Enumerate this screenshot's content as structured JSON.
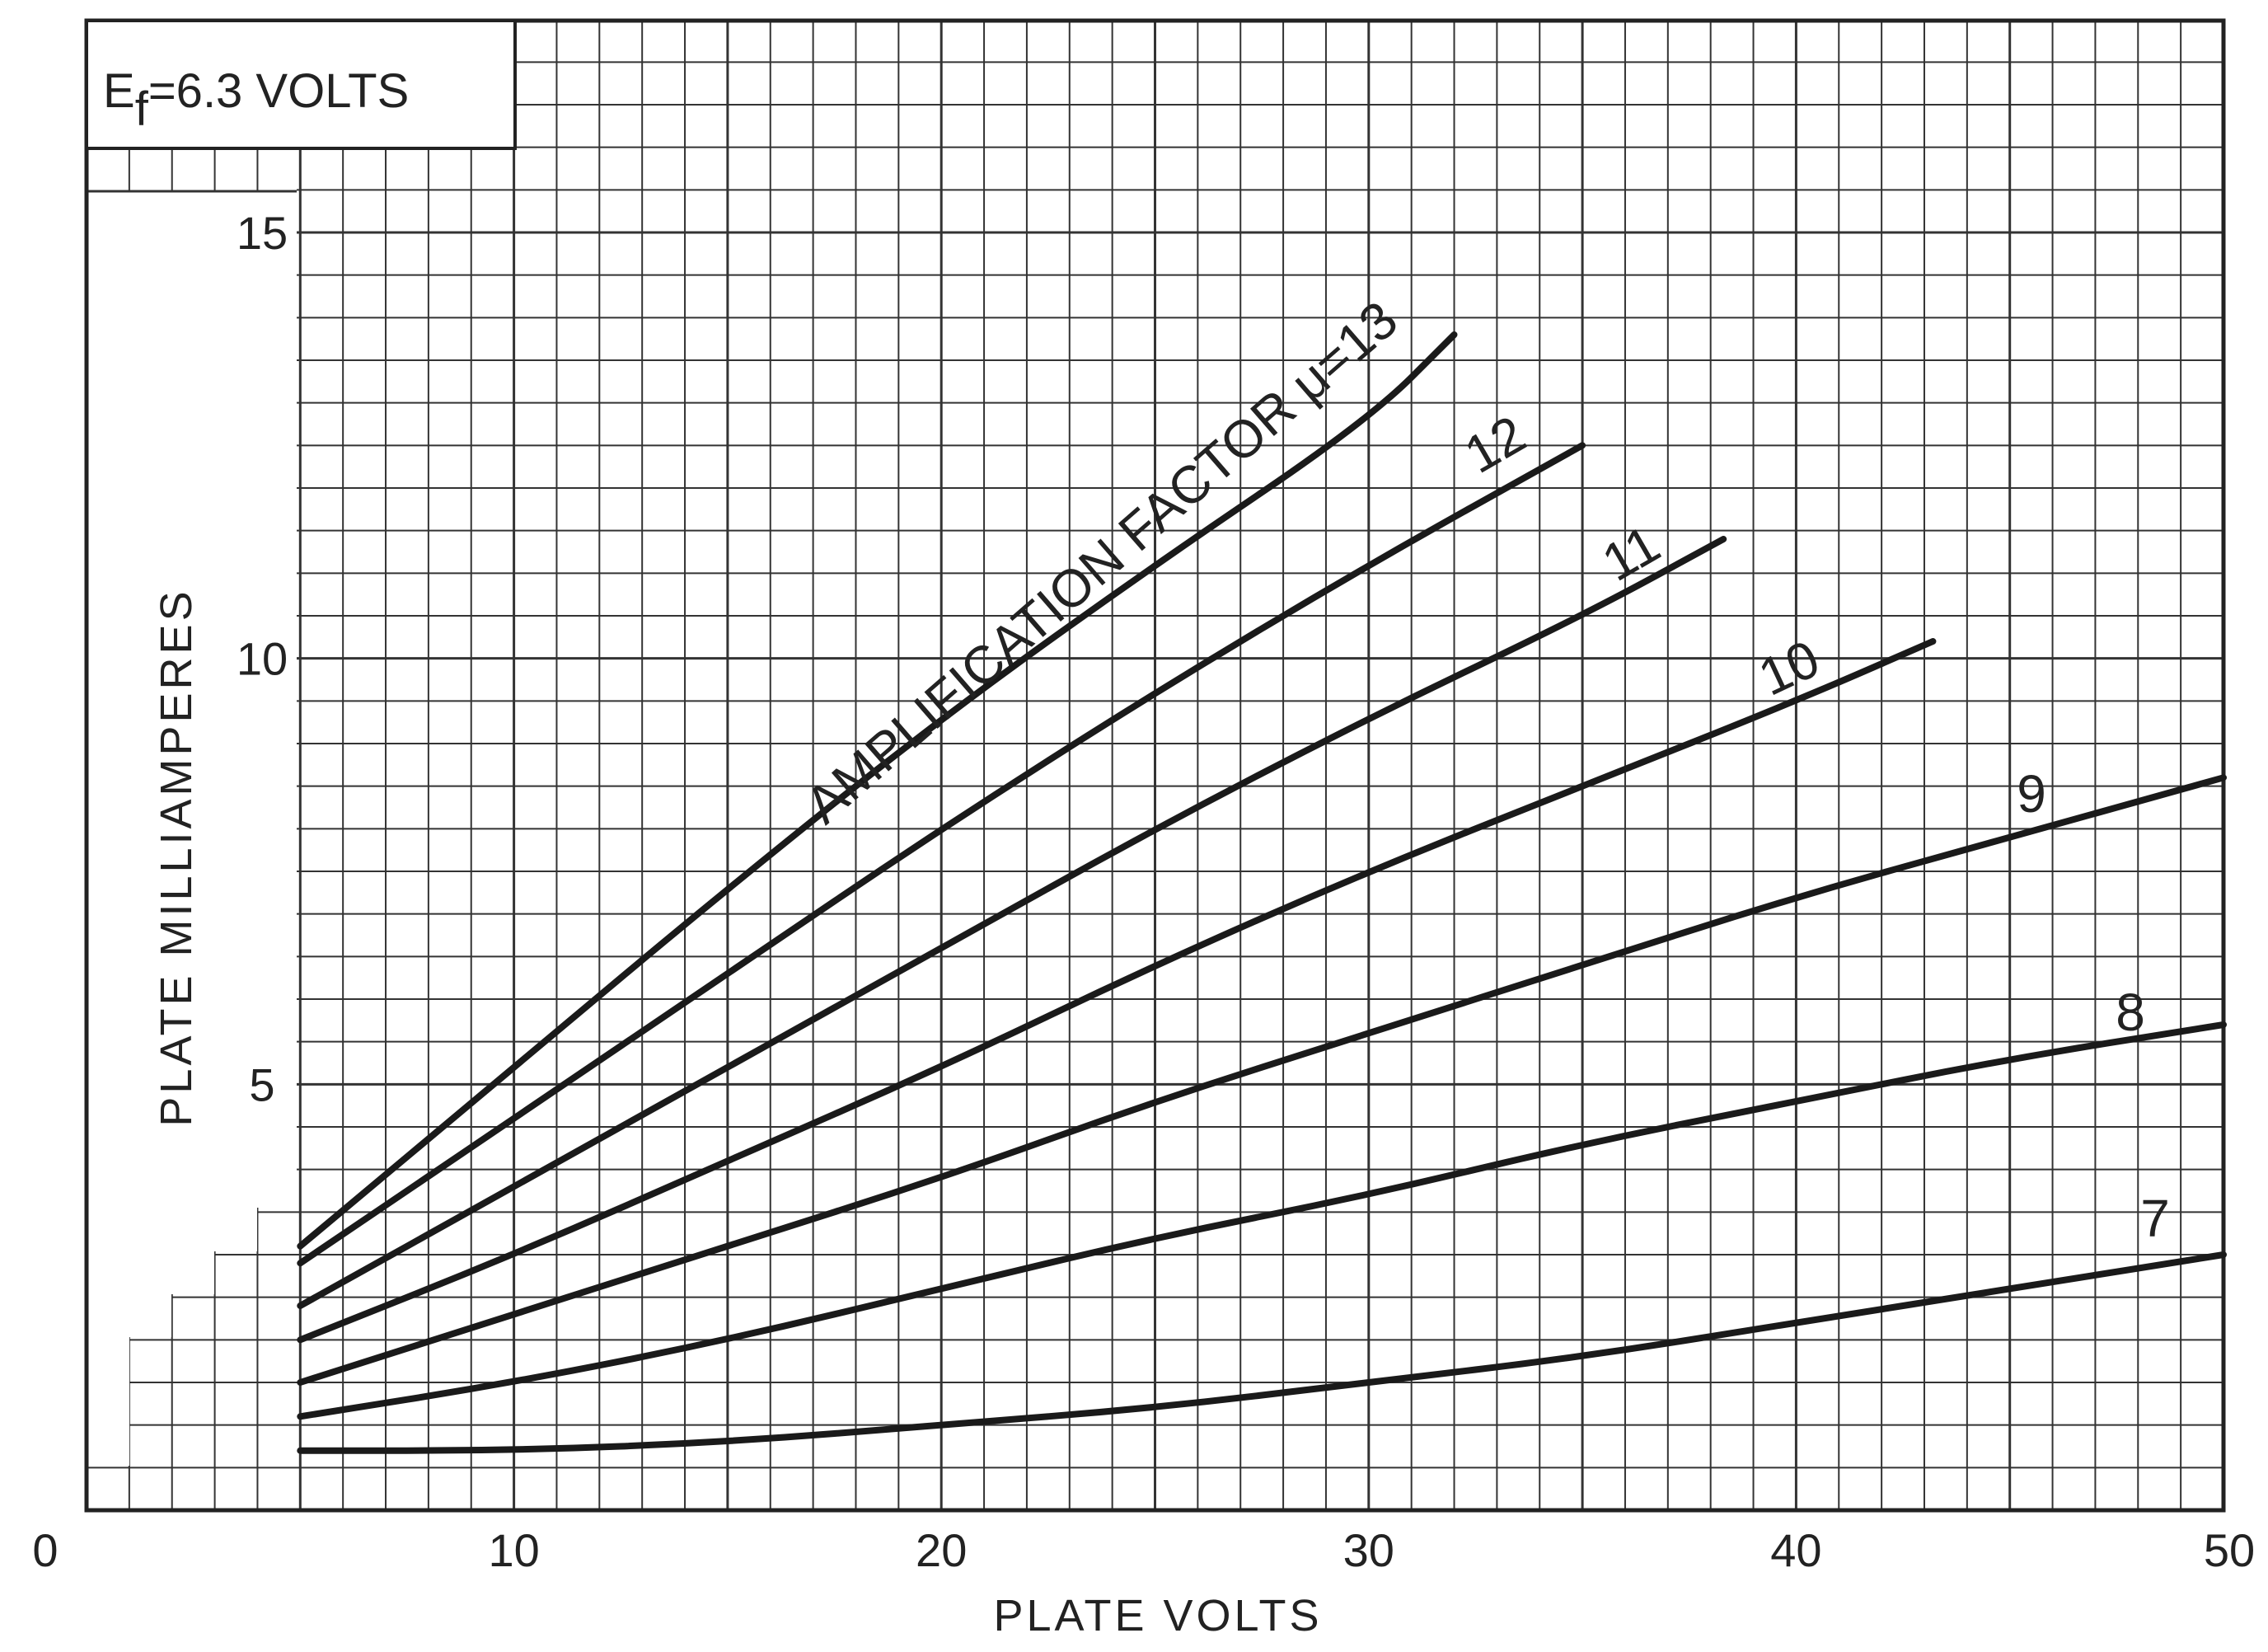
{
  "chart_data": {
    "type": "line",
    "title": "",
    "xlabel": "PLATE VOLTS",
    "ylabel": "PLATE MILLIAMPERES",
    "xlim": [
      0,
      50
    ],
    "ylim": [
      0,
      15
    ],
    "x_ticks": [
      "0",
      "10",
      "20",
      "30",
      "40",
      "50"
    ],
    "y_ticks": [
      "5",
      "10",
      "15"
    ],
    "grid": true,
    "annotation": {
      "prefix": "E",
      "subscript": "f",
      "suffix": "=6.3 VOLTS"
    },
    "curve_title": "AMPLIFICATION FACTOR μ=13",
    "series": [
      {
        "name": "13",
        "points": [
          [
            5,
            3.1
          ],
          [
            10,
            5.2
          ],
          [
            15,
            7.3
          ],
          [
            20,
            9.3
          ],
          [
            25,
            11.1
          ],
          [
            30,
            12.8
          ],
          [
            32,
            13.8
          ]
        ]
      },
      {
        "name": "12",
        "points": [
          [
            5,
            2.9
          ],
          [
            10,
            4.6
          ],
          [
            15,
            6.3
          ],
          [
            20,
            8.0
          ],
          [
            25,
            9.6
          ],
          [
            30,
            11.1
          ],
          [
            35,
            12.5
          ]
        ]
      },
      {
        "name": "11",
        "points": [
          [
            5,
            2.4
          ],
          [
            10,
            3.8
          ],
          [
            15,
            5.2
          ],
          [
            20,
            6.6
          ],
          [
            25,
            8.0
          ],
          [
            30,
            9.3
          ],
          [
            35,
            10.5
          ],
          [
            38.3,
            11.4
          ]
        ]
      },
      {
        "name": "10",
        "points": [
          [
            5,
            2.0
          ],
          [
            10,
            3.0
          ],
          [
            15,
            4.1
          ],
          [
            20,
            5.2
          ],
          [
            25,
            6.4
          ],
          [
            30,
            7.5
          ],
          [
            35,
            8.5
          ],
          [
            40,
            9.5
          ],
          [
            43.2,
            10.2
          ]
        ]
      },
      {
        "name": "9",
        "points": [
          [
            5,
            1.5
          ],
          [
            10,
            2.3
          ],
          [
            15,
            3.1
          ],
          [
            20,
            3.9
          ],
          [
            25,
            4.8
          ],
          [
            30,
            5.6
          ],
          [
            35,
            6.4
          ],
          [
            40,
            7.2
          ],
          [
            45,
            7.9
          ],
          [
            50,
            8.6
          ]
        ]
      },
      {
        "name": "8",
        "points": [
          [
            5,
            1.1
          ],
          [
            10,
            1.5
          ],
          [
            15,
            2.0
          ],
          [
            20,
            2.6
          ],
          [
            25,
            3.2
          ],
          [
            30,
            3.7
          ],
          [
            35,
            4.3
          ],
          [
            40,
            4.8
          ],
          [
            45,
            5.3
          ],
          [
            50,
            5.7
          ]
        ]
      },
      {
        "name": "7",
        "points": [
          [
            5,
            0.7
          ],
          [
            10,
            0.7
          ],
          [
            15,
            0.8
          ],
          [
            20,
            1.0
          ],
          [
            25,
            1.2
          ],
          [
            30,
            1.5
          ],
          [
            35,
            1.8
          ],
          [
            40,
            2.2
          ],
          [
            45,
            2.6
          ],
          [
            50,
            3.0
          ]
        ]
      }
    ]
  }
}
